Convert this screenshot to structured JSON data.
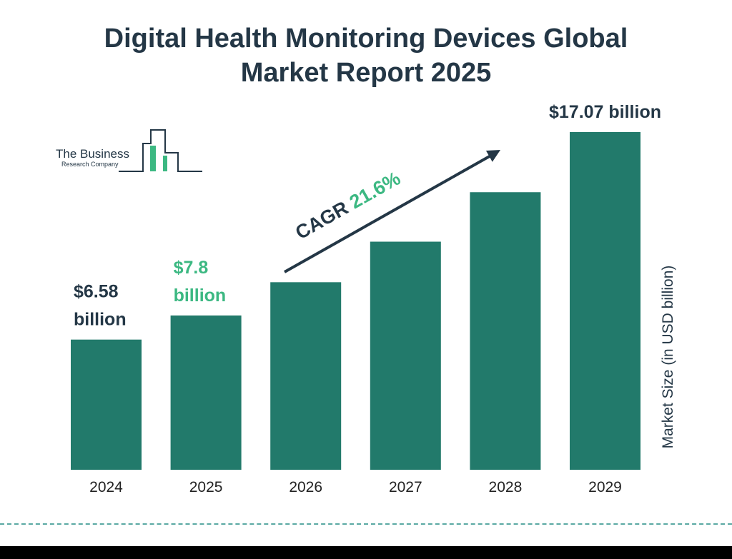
{
  "title": {
    "line1": "Digital Health Monitoring Devices Global",
    "line2": "Market Report 2025"
  },
  "logo": {
    "line1": "The Business",
    "line2": "Research Company"
  },
  "colors": {
    "bar": "#227a6b",
    "accent": "#3cb882",
    "text": "#243746"
  },
  "chart_data": {
    "type": "bar",
    "categories": [
      "2024",
      "2025",
      "2026",
      "2027",
      "2028",
      "2029"
    ],
    "values": [
      6.58,
      7.8,
      9.48,
      11.53,
      14.03,
      17.07
    ],
    "data_labels": [
      {
        "index": 0,
        "lines": [
          "$6.58",
          "billion"
        ],
        "color": "#243746"
      },
      {
        "index": 1,
        "lines": [
          "$7.8",
          "billion"
        ],
        "color": "#3cb882"
      },
      {
        "index": 5,
        "lines": [
          "$17.07 billion"
        ],
        "color": "#243746"
      }
    ],
    "ylabel": "Market Size (in USD billion)",
    "xlabel": "",
    "ylim": [
      0,
      17.07
    ],
    "grid": false,
    "annotation": {
      "label": "CAGR",
      "value": "21.6%"
    }
  }
}
